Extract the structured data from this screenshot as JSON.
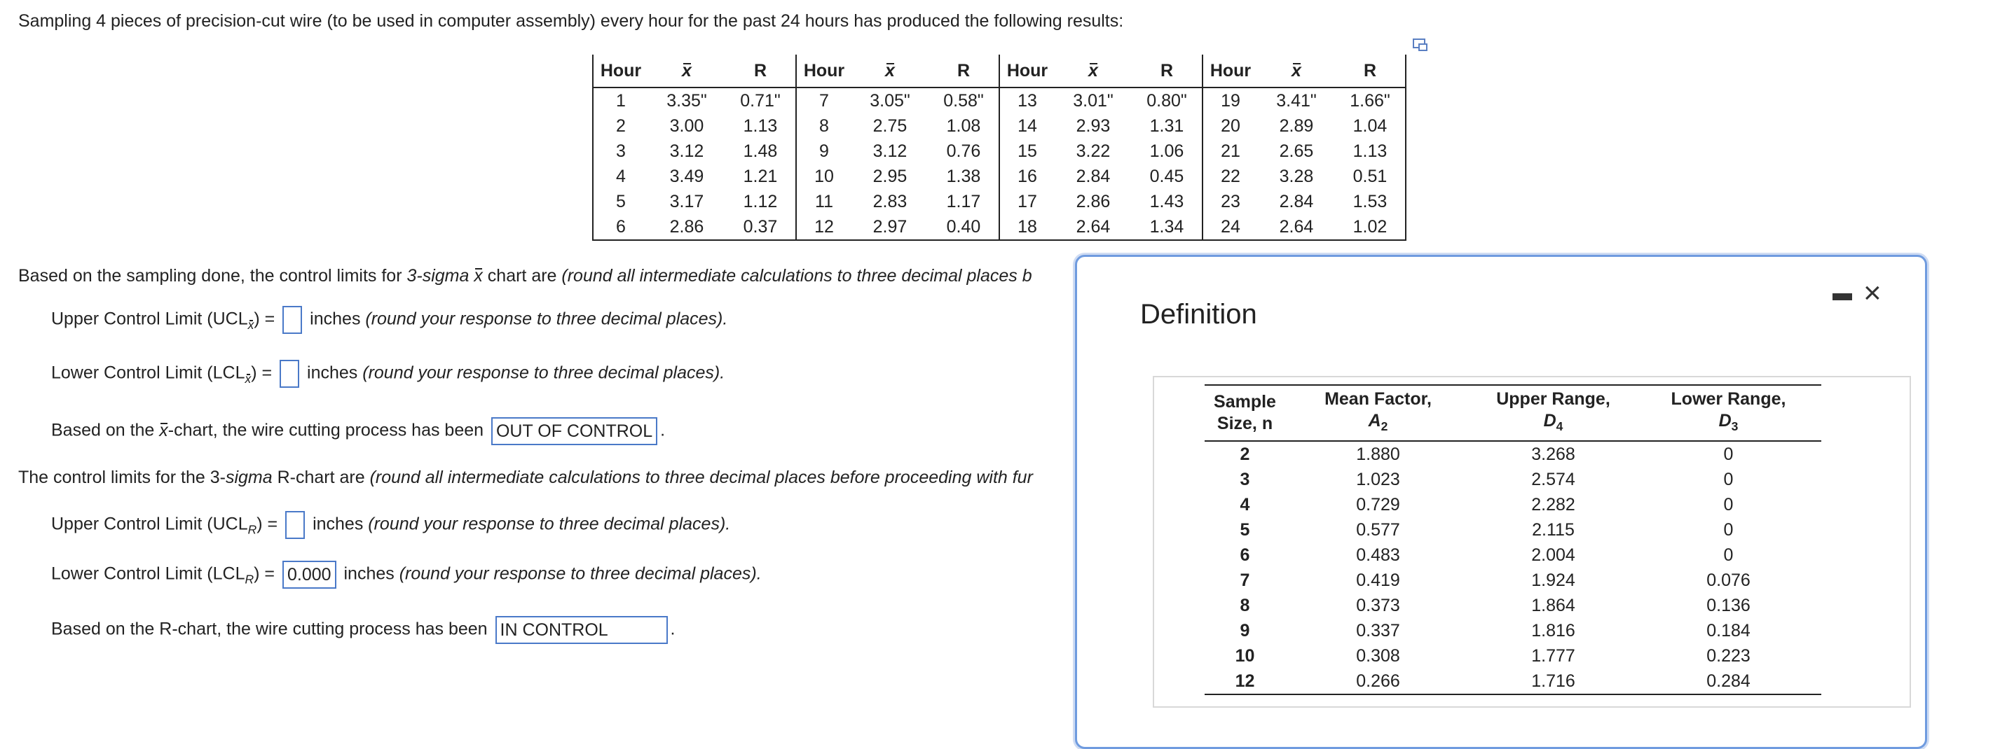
{
  "intro": "Sampling 4 pieces of precision-cut wire (to be used in computer assembly) every hour for the past 24 hours has produced the following results:",
  "data_table": {
    "headers": [
      "Hour",
      "x",
      "R"
    ],
    "groups": [
      [
        [
          "1",
          "3.35\"",
          "0.71\""
        ],
        [
          "2",
          "3.00",
          "1.13"
        ],
        [
          "3",
          "3.12",
          "1.48"
        ],
        [
          "4",
          "3.49",
          "1.21"
        ],
        [
          "5",
          "3.17",
          "1.12"
        ],
        [
          "6",
          "2.86",
          "0.37"
        ]
      ],
      [
        [
          "7",
          "3.05\"",
          "0.58\""
        ],
        [
          "8",
          "2.75",
          "1.08"
        ],
        [
          "9",
          "3.12",
          "0.76"
        ],
        [
          "10",
          "2.95",
          "1.38"
        ],
        [
          "11",
          "2.83",
          "1.17"
        ],
        [
          "12",
          "2.97",
          "0.40"
        ]
      ],
      [
        [
          "13",
          "3.01\"",
          "0.80\""
        ],
        [
          "14",
          "2.93",
          "1.31"
        ],
        [
          "15",
          "3.22",
          "1.06"
        ],
        [
          "16",
          "2.84",
          "0.45"
        ],
        [
          "17",
          "2.86",
          "1.43"
        ],
        [
          "18",
          "2.64",
          "1.34"
        ]
      ],
      [
        [
          "19",
          "3.41\"",
          "1.66\""
        ],
        [
          "20",
          "2.89",
          "1.04"
        ],
        [
          "21",
          "2.65",
          "1.13"
        ],
        [
          "22",
          "3.28",
          "0.51"
        ],
        [
          "23",
          "2.84",
          "1.53"
        ],
        [
          "24",
          "2.64",
          "1.02"
        ]
      ]
    ]
  },
  "xbar_section": {
    "lead_a": "Based on the sampling done, the control limits for ",
    "lead_b": "3-sigma ",
    "lead_c": "x",
    "lead_d": " chart are ",
    "lead_e": "(round all intermediate calculations to three decimal places b",
    "ucl_label": "Upper Control Limit (UCL",
    "ucl_sub": "x",
    "lcl_label": "Lower Control Limit (LCL",
    "lcl_sub": "x",
    "eq": ") =",
    "ucl_value": "",
    "lcl_value": "",
    "unit": "inches",
    "round_note": "(round your response to three decimal places).",
    "conclusion_a": "Based on the ",
    "conclusion_b": "x",
    "conclusion_c": "-chart, the wire cutting process has been",
    "conclusion_value": "OUT OF CONTROL",
    "period": "."
  },
  "r_section": {
    "lead_a": "The control limits for the 3-",
    "lead_b": "sigma",
    "lead_c": " R-chart are ",
    "lead_d": "(round all intermediate calculations to three decimal places before proceeding with fur",
    "ucl_label": "Upper Control Limit (UCL",
    "ucl_sub": "R",
    "lcl_label": "Lower Control Limit (LCL",
    "lcl_sub": "R",
    "eq": ") =",
    "ucl_value": "",
    "lcl_value": "0.000",
    "unit": "inches",
    "round_note": "(round your response to three decimal places).",
    "conclusion": "Based on the R-chart, the wire cutting process has been",
    "conclusion_value": "IN CONTROL",
    "period": "."
  },
  "definition": {
    "title": "Definition",
    "minimize": "-",
    "close": "×",
    "headers": [
      {
        "line1": "Sample",
        "line2": "Size, n"
      },
      {
        "line1": "Mean Factor,",
        "line2": "A",
        "sub": "2"
      },
      {
        "line1": "Upper Range,",
        "line2": "D",
        "sub": "4"
      },
      {
        "line1": "Lower Range,",
        "line2": "D",
        "sub": "3"
      }
    ],
    "rows": [
      [
        "2",
        "1.880",
        "3.268",
        "0"
      ],
      [
        "3",
        "1.023",
        "2.574",
        "0"
      ],
      [
        "4",
        "0.729",
        "2.282",
        "0"
      ],
      [
        "5",
        "0.577",
        "2.115",
        "0"
      ],
      [
        "6",
        "0.483",
        "2.004",
        "0"
      ],
      [
        "7",
        "0.419",
        "1.924",
        "0.076"
      ],
      [
        "8",
        "0.373",
        "1.864",
        "0.136"
      ],
      [
        "9",
        "0.337",
        "1.816",
        "0.184"
      ],
      [
        "10",
        "0.308",
        "1.777",
        "0.223"
      ],
      [
        "12",
        "0.266",
        "1.716",
        "0.284"
      ]
    ]
  },
  "icons": {
    "resize": "expand-window-icon"
  }
}
